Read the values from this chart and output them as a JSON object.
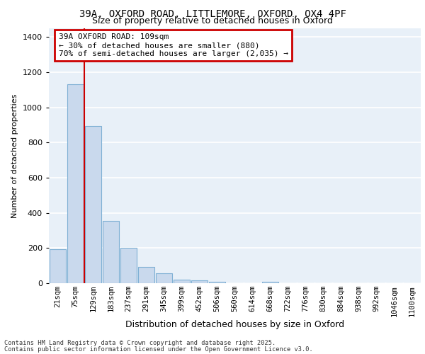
{
  "title_line1": "39A, OXFORD ROAD, LITTLEMORE, OXFORD, OX4 4PF",
  "title_line2": "Size of property relative to detached houses in Oxford",
  "xlabel": "Distribution of detached houses by size in Oxford",
  "ylabel": "Number of detached properties",
  "categories": [
    "21sqm",
    "75sqm",
    "129sqm",
    "183sqm",
    "237sqm",
    "291sqm",
    "345sqm",
    "399sqm",
    "452sqm",
    "506sqm",
    "560sqm",
    "614sqm",
    "668sqm",
    "722sqm",
    "776sqm",
    "830sqm",
    "884sqm",
    "938sqm",
    "992sqm",
    "1046sqm",
    "1100sqm"
  ],
  "values": [
    195,
    1130,
    895,
    355,
    200,
    93,
    58,
    22,
    18,
    10,
    0,
    0,
    10,
    0,
    0,
    0,
    0,
    0,
    0,
    0,
    0
  ],
  "bar_color": "#c9d9ed",
  "bar_edge_color": "#7fb0d4",
  "background_color": "#e8f0f8",
  "grid_color": "#ffffff",
  "vline_x": 1.5,
  "vline_color": "#cc0000",
  "annotation_text": "39A OXFORD ROAD: 109sqm\n← 30% of detached houses are smaller (880)\n70% of semi-detached houses are larger (2,035) →",
  "annotation_box_color": "#cc0000",
  "ylim": [
    0,
    1450
  ],
  "yticks": [
    0,
    200,
    400,
    600,
    800,
    1000,
    1200,
    1400
  ],
  "footer_line1": "Contains HM Land Registry data © Crown copyright and database right 2025.",
  "footer_line2": "Contains public sector information licensed under the Open Government Licence v3.0."
}
